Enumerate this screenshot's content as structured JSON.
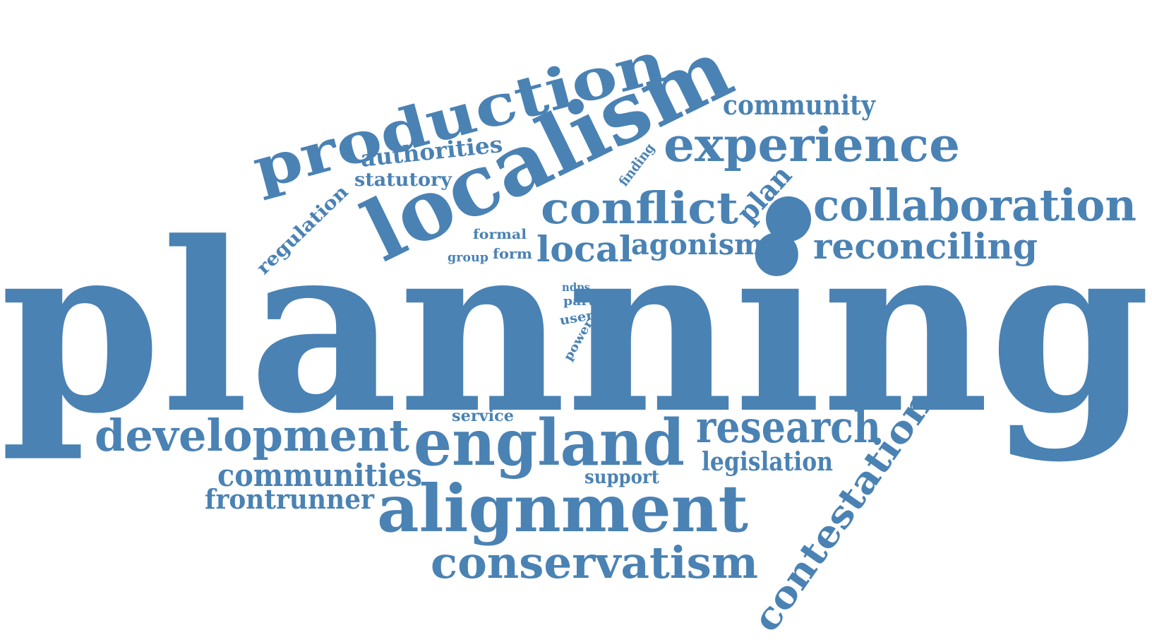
{
  "accent_color": "#4a82b4",
  "words": [
    {
      "key": "planning",
      "text": "planning"
    },
    {
      "key": "localism",
      "text": "localism"
    },
    {
      "key": "production",
      "text": "production"
    },
    {
      "key": "experience",
      "text": "experience"
    },
    {
      "key": "community",
      "text": "community"
    },
    {
      "key": "collaboration",
      "text": "collaboration"
    },
    {
      "key": "reconciling",
      "text": "reconciling"
    },
    {
      "key": "conflict",
      "text": "conflict"
    },
    {
      "key": "plan",
      "text": "plan"
    },
    {
      "key": "finding",
      "text": "finding"
    },
    {
      "key": "authorities",
      "text": "authorities"
    },
    {
      "key": "statutory",
      "text": "statutory"
    },
    {
      "key": "regulation",
      "text": "regulation"
    },
    {
      "key": "formal",
      "text": "formal"
    },
    {
      "key": "group",
      "text": "group"
    },
    {
      "key": "form",
      "text": "form"
    },
    {
      "key": "local",
      "text": "local"
    },
    {
      "key": "agonism",
      "text": "agonism"
    },
    {
      "key": "ndps",
      "text": "ndps"
    },
    {
      "key": "part",
      "text": "part"
    },
    {
      "key": "user",
      "text": "user"
    },
    {
      "key": "power",
      "text": "power"
    },
    {
      "key": "service",
      "text": "service"
    },
    {
      "key": "development",
      "text": "development"
    },
    {
      "key": "england",
      "text": "england"
    },
    {
      "key": "research",
      "text": "research"
    },
    {
      "key": "legislation",
      "text": "legislation"
    },
    {
      "key": "communities",
      "text": "communities"
    },
    {
      "key": "support",
      "text": "support"
    },
    {
      "key": "frontrunner",
      "text": "frontrunner"
    },
    {
      "key": "alignment",
      "text": "alignment"
    },
    {
      "key": "conservatism",
      "text": "conservatism"
    },
    {
      "key": "contestation",
      "text": "contestation"
    }
  ]
}
